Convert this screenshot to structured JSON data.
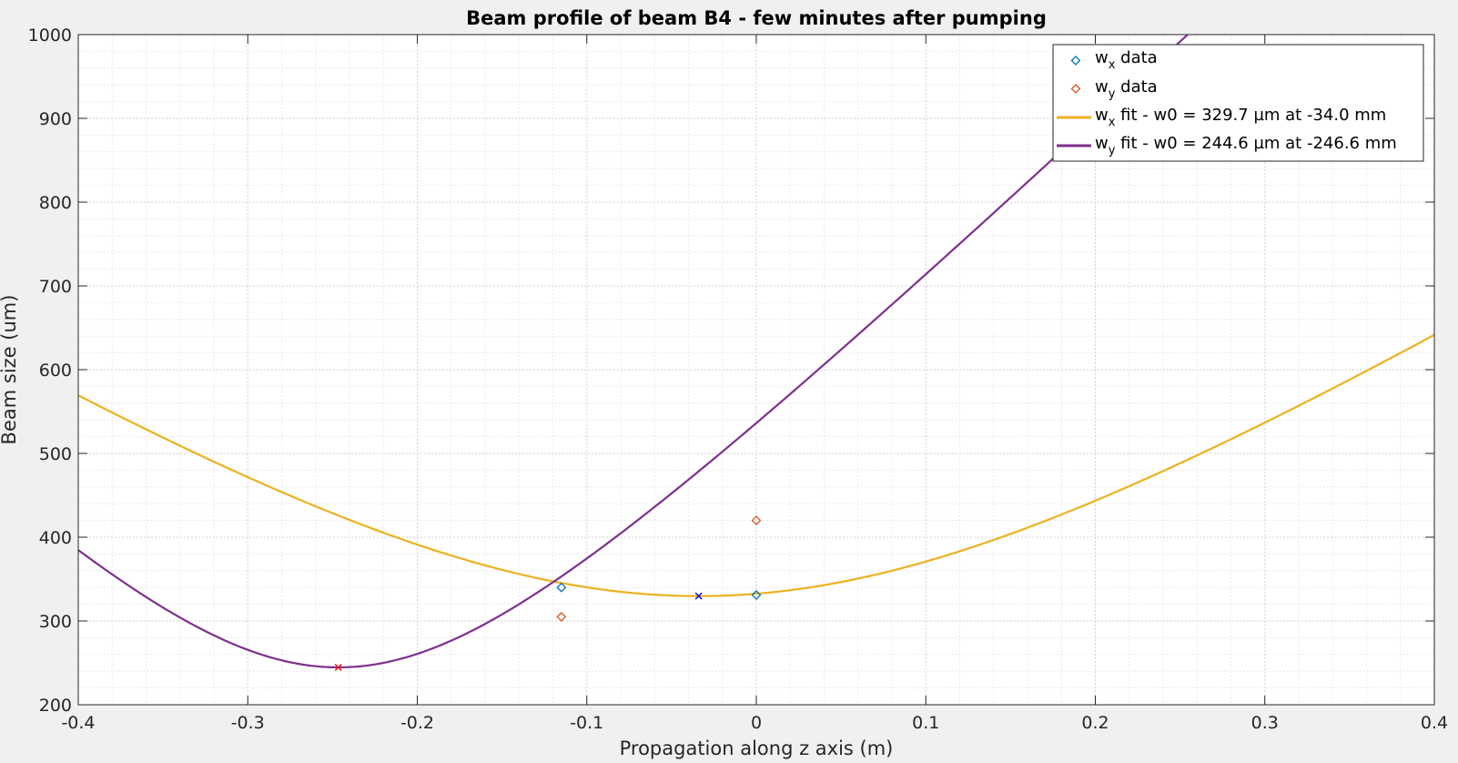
{
  "chart_data": {
    "type": "line",
    "title": "Beam profile of beam B4 - few minutes after pumping",
    "xlabel": "Propagation along z axis (m)",
    "ylabel": "Beam size (um)",
    "xlim": [
      -0.4,
      0.4
    ],
    "ylim": [
      200,
      1000
    ],
    "x_ticks": [
      -0.4,
      -0.3,
      -0.2,
      -0.1,
      0,
      0.1,
      0.2,
      0.3,
      0.4
    ],
    "x_tick_labels": [
      "-0.4",
      "-0.3",
      "-0.2",
      "-0.1",
      "0",
      "0.1",
      "0.2",
      "0.3",
      "0.4"
    ],
    "y_ticks": [
      200,
      300,
      400,
      500,
      600,
      700,
      800,
      900,
      1000
    ],
    "y_tick_labels": [
      "200",
      "300",
      "400",
      "500",
      "600",
      "700",
      "800",
      "900",
      "1000"
    ],
    "grid": true,
    "minor_grid": true,
    "legend_position": "top-right",
    "legend": {
      "wx_data": {
        "main": "w",
        "sub": "x",
        "rest": " data"
      },
      "wy_data": {
        "main": "w",
        "sub": "y",
        "rest": " data"
      },
      "wx_fit": {
        "main": "w",
        "sub": "x",
        "rest": " fit - w0 = 329.7 µm at -34.0 mm"
      },
      "wy_fit": {
        "main": "w",
        "sub": "y",
        "rest": " fit - w0 = 244.6 µm at -246.6 mm"
      }
    },
    "data_series": [
      {
        "key": "wx_data",
        "marker": "diamond",
        "color": "#0072bd",
        "x": [
          -0.115,
          0
        ],
        "y": [
          340,
          331
        ]
      },
      {
        "key": "wy_data",
        "marker": "diamond",
        "color": "#d95319",
        "x": [
          -0.115,
          0
        ],
        "y": [
          305,
          420
        ]
      }
    ],
    "fit_series": [
      {
        "key": "wx_fit",
        "color": "#edb120",
        "w0": 329.7,
        "z0": -0.034,
        "zR": 0.26
      },
      {
        "key": "wy_fit",
        "color": "#7e2f8e",
        "w0": 244.6,
        "z0": -0.2466,
        "zR": 0.1264
      }
    ],
    "waist_markers": [
      {
        "x": -0.034,
        "y": 329.7,
        "color": "#0000ff"
      },
      {
        "x": -0.2466,
        "y": 244.6,
        "color": "#ff0000"
      }
    ]
  }
}
